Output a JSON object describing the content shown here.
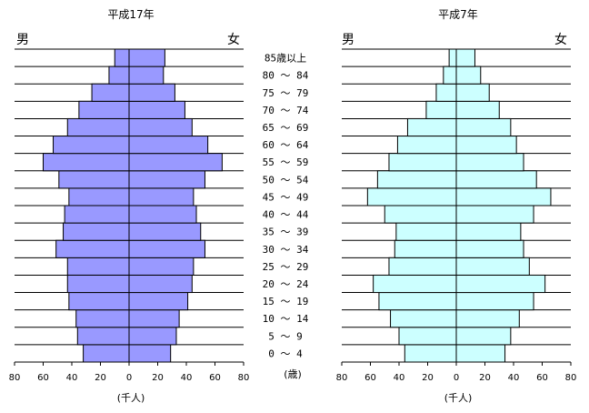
{
  "colors": {
    "left_fill": "#9999ff",
    "right_fill": "#ccffff",
    "stroke": "#000000"
  },
  "age_label_header": "85歳以上",
  "age_groups": [
    "0 ～ 4",
    "5 ～ 9",
    "10 ～ 14",
    "15 ～ 19",
    "20 ～ 24",
    "25 ～ 29",
    "30 ～ 34",
    "35 ～ 39",
    "40 ～ 44",
    "45 ～ 49",
    "50 ～ 54",
    "55 ～ 59",
    "60 ～ 64",
    "65 ～ 69",
    "70 ～ 74",
    "75 ～ 79",
    "80 ～ 84",
    "85歳以上"
  ],
  "age_unit_label": "(歳)",
  "chart_data": [
    {
      "type": "bar",
      "title": "平成17年",
      "male_label": "男",
      "female_label": "女",
      "xlabel": "(千人)",
      "xlim": [
        -80,
        80
      ],
      "xticks": [
        "80",
        "60",
        "40",
        "20",
        "0",
        "20",
        "40",
        "60",
        "80"
      ],
      "categories": [
        "0 ～ 4",
        "5 ～ 9",
        "10 ～ 14",
        "15 ～ 19",
        "20 ～ 24",
        "25 ～ 29",
        "30 ～ 34",
        "35 ～ 39",
        "40 ～ 44",
        "45 ～ 49",
        "50 ～ 54",
        "55 ～ 59",
        "60 ～ 64",
        "65 ～ 69",
        "70 ～ 74",
        "75 ～ 79",
        "80 ～ 84",
        "85歳以上"
      ],
      "series": [
        {
          "name": "男",
          "values": [
            32,
            36,
            37,
            42,
            43,
            43,
            51,
            46,
            45,
            42,
            49,
            60,
            53,
            43,
            35,
            26,
            14,
            10
          ]
        },
        {
          "name": "女",
          "values": [
            29,
            33,
            35,
            41,
            44,
            45,
            53,
            50,
            47,
            45,
            53,
            65,
            55,
            44,
            39,
            32,
            24,
            25
          ]
        }
      ]
    },
    {
      "type": "bar",
      "title": "平成7年",
      "male_label": "男",
      "female_label": "女",
      "xlabel": "(千人)",
      "xlim": [
        -80,
        80
      ],
      "xticks": [
        "80",
        "60",
        "40",
        "20",
        "0",
        "20",
        "40",
        "60",
        "80"
      ],
      "categories": [
        "0 ～ 4",
        "5 ～ 9",
        "10 ～ 14",
        "15 ～ 19",
        "20 ～ 24",
        "25 ～ 29",
        "30 ～ 34",
        "35 ～ 39",
        "40 ～ 44",
        "45 ～ 49",
        "50 ～ 54",
        "55 ～ 59",
        "60 ～ 64",
        "65 ～ 69",
        "70 ～ 74",
        "75 ～ 79",
        "80 ～ 84",
        "85歳以上"
      ],
      "series": [
        {
          "name": "男",
          "values": [
            36,
            40,
            46,
            54,
            58,
            47,
            43,
            42,
            50,
            62,
            55,
            47,
            41,
            34,
            21,
            14,
            9,
            5
          ]
        },
        {
          "name": "女",
          "values": [
            34,
            38,
            44,
            54,
            62,
            51,
            47,
            45,
            54,
            66,
            56,
            47,
            42,
            38,
            30,
            23,
            17,
            13
          ]
        }
      ]
    }
  ]
}
